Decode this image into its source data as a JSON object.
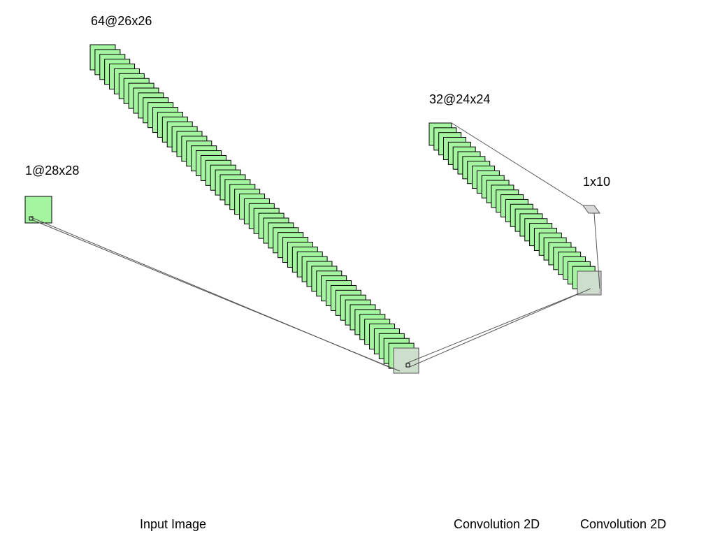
{
  "layers": [
    {
      "id": "input",
      "shape_label": "1@28x28",
      "caption": "Input Image",
      "count": 1
    },
    {
      "id": "conv1",
      "shape_label": "64@26x26",
      "caption": "",
      "count": 64
    },
    {
      "id": "conv2",
      "shape_label": "32@24x24",
      "caption": "Convolution 2D",
      "count": 32
    },
    {
      "id": "output",
      "shape_label": "1x10",
      "caption": "Convolution 2D",
      "count": 1
    }
  ],
  "colors": {
    "feature_map_fill": "#a5f5a0",
    "feature_map_stroke": "#000000",
    "kernel_fill": "#d8d8d8",
    "connector": "#555555"
  }
}
